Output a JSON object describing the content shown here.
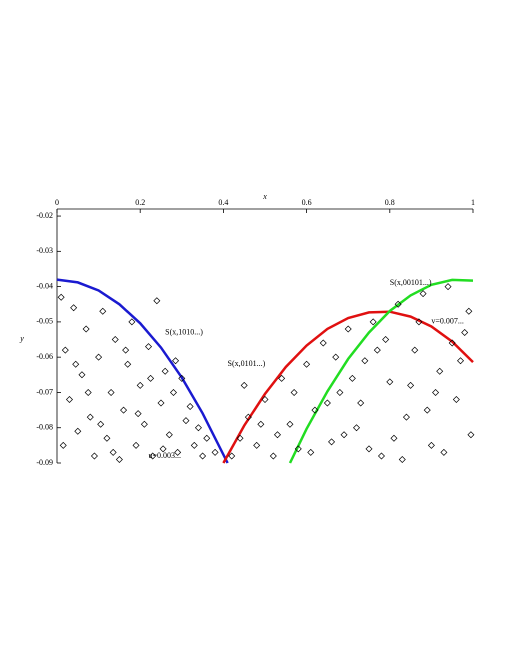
{
  "chart_data": {
    "type": "scatter",
    "xlabel": "x",
    "ylabel": "y",
    "xlim": [
      0,
      1
    ],
    "ylim": [
      -0.09,
      -0.018
    ],
    "xticks": [
      0,
      0.2,
      0.4,
      0.6,
      0.8,
      1
    ],
    "yticks": [
      -0.02,
      -0.03,
      -0.04,
      -0.05,
      -0.06,
      -0.07,
      -0.08,
      -0.09
    ],
    "marker_color": "#000000",
    "x": [
      0.01,
      0.02,
      0.03,
      0.04,
      0.05,
      0.06,
      0.07,
      0.08,
      0.09,
      0.1,
      0.11,
      0.12,
      0.13,
      0.14,
      0.15,
      0.16,
      0.17,
      0.18,
      0.19,
      0.2,
      0.21,
      0.22,
      0.23,
      0.24,
      0.25,
      0.26,
      0.27,
      0.28,
      0.29,
      0.3,
      0.31,
      0.32,
      0.33,
      0.34,
      0.35,
      0.36,
      0.38,
      0.015,
      0.045,
      0.075,
      0.105,
      0.135,
      0.165,
      0.195,
      0.225,
      0.255,
      0.285,
      0.42,
      0.44,
      0.46,
      0.48,
      0.5,
      0.52,
      0.54,
      0.56,
      0.58,
      0.6,
      0.62,
      0.64,
      0.66,
      0.68,
      0.7,
      0.72,
      0.74,
      0.76,
      0.78,
      0.8,
      0.82,
      0.84,
      0.86,
      0.88,
      0.9,
      0.92,
      0.94,
      0.96,
      0.98,
      0.995,
      0.45,
      0.49,
      0.53,
      0.57,
      0.61,
      0.65,
      0.69,
      0.73,
      0.77,
      0.81,
      0.85,
      0.89,
      0.93,
      0.97,
      0.99,
      0.67,
      0.71,
      0.75,
      0.79,
      0.83,
      0.87,
      0.91,
      0.95
    ],
    "values": [
      -0.043,
      -0.058,
      -0.072,
      -0.046,
      -0.081,
      -0.065,
      -0.052,
      -0.077,
      -0.088,
      -0.06,
      -0.047,
      -0.083,
      -0.07,
      -0.055,
      -0.089,
      -0.075,
      -0.062,
      -0.05,
      -0.085,
      -0.068,
      -0.079,
      -0.057,
      -0.088,
      -0.044,
      -0.073,
      -0.064,
      -0.082,
      -0.07,
      -0.087,
      -0.066,
      -0.078,
      -0.074,
      -0.085,
      -0.08,
      -0.088,
      -0.083,
      -0.087,
      -0.085,
      -0.062,
      -0.07,
      -0.079,
      -0.087,
      -0.058,
      -0.076,
      -0.066,
      -0.086,
      -0.061,
      -0.088,
      -0.083,
      -0.077,
      -0.085,
      -0.072,
      -0.088,
      -0.066,
      -0.079,
      -0.086,
      -0.062,
      -0.075,
      -0.056,
      -0.084,
      -0.07,
      -0.052,
      -0.08,
      -0.061,
      -0.05,
      -0.088,
      -0.067,
      -0.045,
      -0.077,
      -0.058,
      -0.042,
      -0.085,
      -0.064,
      -0.04,
      -0.072,
      -0.053,
      -0.082,
      -0.068,
      -0.079,
      -0.082,
      -0.07,
      -0.087,
      -0.073,
      -0.082,
      -0.073,
      -0.058,
      -0.083,
      -0.068,
      -0.075,
      -0.087,
      -0.061,
      -0.047,
      -0.06,
      -0.066,
      -0.086,
      -0.055,
      -0.089,
      -0.05,
      -0.07,
      -0.056
    ],
    "curves": [
      {
        "color": "#1a1ad0",
        "x": [
          0,
          0.05,
          0.1,
          0.15,
          0.2,
          0.25,
          0.3,
          0.35,
          0.41
        ],
        "values": [
          -0.038,
          -0.0388,
          -0.0411,
          -0.045,
          -0.0504,
          -0.0573,
          -0.0658,
          -0.0759,
          -0.09
        ]
      },
      {
        "color": "#e01010",
        "x": [
          0.4,
          0.45,
          0.5,
          0.55,
          0.6,
          0.65,
          0.7,
          0.75,
          0.8,
          0.85,
          0.9,
          0.95,
          1
        ],
        "values": [
          -0.09,
          -0.0794,
          -0.0704,
          -0.0628,
          -0.0567,
          -0.052,
          -0.0489,
          -0.0473,
          -0.0471,
          -0.0485,
          -0.0513,
          -0.0556,
          -0.0614
        ]
      },
      {
        "color": "#22dd22",
        "x": [
          0.56,
          0.6,
          0.65,
          0.7,
          0.75,
          0.8,
          0.85,
          0.9,
          0.95,
          1
        ],
        "values": [
          -0.09,
          -0.0803,
          -0.0697,
          -0.0605,
          -0.053,
          -0.0469,
          -0.0425,
          -0.0395,
          -0.0381,
          -0.0383
        ]
      }
    ],
    "annotations": [
      {
        "text": "S(x,1010...)",
        "x": 0.26,
        "y": -0.053
      },
      {
        "text": "S(x,0101...)",
        "x": 0.41,
        "y": -0.062
      },
      {
        "text": "S(x,00101...)",
        "x": 0.8,
        "y": -0.039
      },
      {
        "text": "v=0.007...",
        "x": 0.9,
        "y": -0.05
      },
      {
        "text": "u=0.003...",
        "x": 0.22,
        "y": -0.088
      }
    ]
  }
}
